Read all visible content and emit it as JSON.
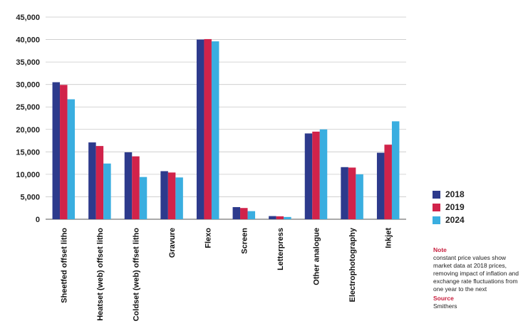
{
  "colors": {
    "s2018": "#2d3a8c",
    "s2019": "#d1234a",
    "s2024": "#3aaee0",
    "grid": "#c8c8c8",
    "note_heading": "#c8203f"
  },
  "chart_data": {
    "type": "bar",
    "categories": [
      "Sheetfed offset litho",
      "Heatset (web) offset litho",
      "Coldset (web) offset litho",
      "Gravure",
      "Flexo",
      "Screen",
      "Letterpress",
      "Other analogue",
      "Electrophotography",
      "Inkjet"
    ],
    "series": [
      {
        "name": "2018",
        "values": [
          30500,
          17100,
          14900,
          10700,
          40000,
          2700,
          700,
          19100,
          11600,
          14800
        ]
      },
      {
        "name": "2019",
        "values": [
          29900,
          16300,
          14000,
          10400,
          40100,
          2500,
          650,
          19500,
          11500,
          16600
        ]
      },
      {
        "name": "2024",
        "values": [
          26700,
          12400,
          9400,
          9300,
          39600,
          1800,
          500,
          20000,
          10000,
          21800
        ]
      }
    ],
    "yticks": [
      "0",
      "5,000",
      "10,000",
      "15,000",
      "20,000",
      "25,000",
      "30,000",
      "35,000",
      "40,000",
      "45,000"
    ],
    "ylim": [
      0,
      45000
    ],
    "grid": true,
    "legend_position": "right"
  },
  "legend": {
    "items": [
      "2018",
      "2019",
      "2024"
    ]
  },
  "notes": {
    "note_heading": "Note",
    "note_text": "constant price values show market data at 2018 prices, removing impact of inflation and exchange rate fluctuations from one year to the next",
    "source_heading": "Source",
    "source_text": "Smithers"
  }
}
